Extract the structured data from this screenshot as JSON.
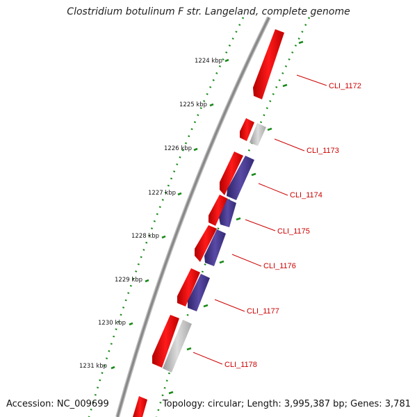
{
  "title": "Clostridium botulinum F str. Langeland, complete genome",
  "footer": {
    "accession": "Accession: NC_009699",
    "topology": "Topology: circular; Length: 3,995,387 bp; Genes: 3,781"
  },
  "colors": {
    "forward_gene": "#ee0000",
    "reverse_gene": "#4a3a8e",
    "other_feature": "#bbbbbb",
    "backbone": "#8a8a8a",
    "tick": "#1a8a1a",
    "label": "#cc0000"
  },
  "scale_ticks": [
    {
      "label": "1224 kbp",
      "pos": 1224
    },
    {
      "label": "1225 kbp",
      "pos": 1225
    },
    {
      "label": "1226 kbp",
      "pos": 1226
    },
    {
      "label": "1227 kbp",
      "pos": 1227
    },
    {
      "label": "1228 kbp",
      "pos": 1228
    },
    {
      "label": "1229 kbp",
      "pos": 1229
    },
    {
      "label": "1230 kbp",
      "pos": 1230
    },
    {
      "label": "1231 kbp",
      "pos": 1231
    }
  ],
  "genes": [
    {
      "id": "CLI_1172",
      "label": "CLI_1172"
    },
    {
      "id": "CLI_1173",
      "label": "CLI_1173"
    },
    {
      "id": "CLI_1174",
      "label": "CLI_1174"
    },
    {
      "id": "CLI_1175",
      "label": "CLI_1175"
    },
    {
      "id": "CLI_1176",
      "label": "CLI_1176"
    },
    {
      "id": "CLI_1177",
      "label": "CLI_1177"
    },
    {
      "id": "CLI_1178",
      "label": "CLI_1178"
    }
  ]
}
